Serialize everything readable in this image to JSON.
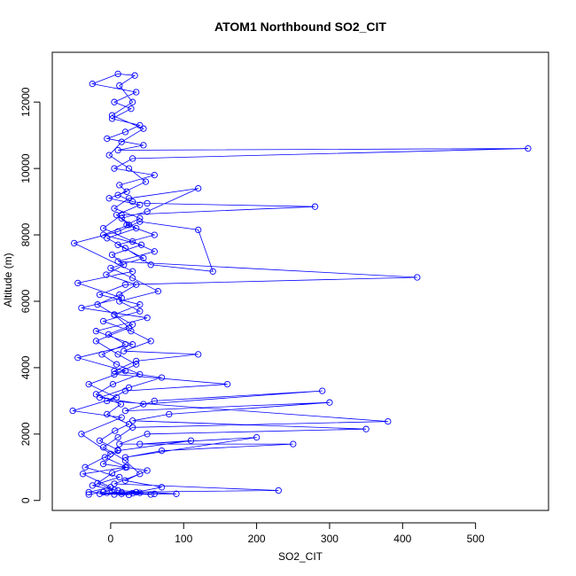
{
  "chart_data": {
    "type": "line",
    "title": "ATOM1 Northbound SO2_CIT",
    "xlabel": "SO2_CIT",
    "ylabel": "Altitude (m)",
    "xlim": [
      -80,
      600
    ],
    "ylim": [
      -300,
      13500
    ],
    "x_ticks": [
      0,
      100,
      200,
      300,
      400,
      500
    ],
    "y_ticks": [
      0,
      2000,
      4000,
      6000,
      8000,
      10000,
      12000
    ],
    "x_tick_labels": [
      "0",
      "100",
      "200",
      "300",
      "400",
      "500"
    ],
    "y_tick_labels": [
      "0",
      "2000",
      "4000",
      "6000",
      "8000",
      "10000",
      "12000"
    ],
    "grid": false,
    "legend": "none",
    "marker": "open-circle",
    "series": [
      {
        "color": "#0000ff",
        "points": [
          [
            -30,
            180
          ],
          [
            -10,
            250
          ],
          [
            5,
            320
          ],
          [
            -18,
            520
          ],
          [
            2,
            820
          ],
          [
            22,
            1000
          ],
          [
            -8,
            1300
          ],
          [
            10,
            1520
          ],
          [
            -15,
            1800
          ],
          [
            6,
            2100
          ],
          [
            25,
            2300
          ],
          [
            -5,
            2600
          ],
          [
            14,
            2900
          ],
          [
            -20,
            3200
          ],
          [
            3,
            3500
          ],
          [
            40,
            3800
          ],
          [
            8,
            4100
          ],
          [
            -12,
            4400
          ],
          [
            20,
            4700
          ],
          [
            -3,
            5000
          ],
          [
            30,
            5300
          ],
          [
            5,
            5600
          ],
          [
            -18,
            5900
          ],
          [
            12,
            6200
          ],
          [
            35,
            6500
          ],
          [
            -6,
            6800
          ],
          [
            18,
            7100
          ],
          [
            2,
            7400
          ],
          [
            42,
            7700
          ],
          [
            -10,
            8000
          ],
          [
            25,
            8300
          ],
          [
            8,
            8600
          ],
          [
            40,
            8900
          ],
          [
            -2,
            9100
          ],
          [
            22,
            9300
          ],
          [
            12,
            9500
          ],
          [
            60,
            9800
          ],
          [
            5,
            10000
          ],
          [
            30,
            10300
          ],
          [
            572,
            10600
          ],
          [
            10,
            10550
          ],
          [
            45,
            10700
          ],
          [
            -5,
            10900
          ],
          [
            20,
            11100
          ],
          [
            40,
            11300
          ],
          [
            2,
            11500
          ],
          [
            28,
            11800
          ],
          [
            5,
            12000
          ],
          [
            35,
            12300
          ],
          [
            -25,
            12550
          ],
          [
            10,
            12850
          ],
          [
            33,
            12800
          ],
          [
            12,
            12500
          ],
          [
            30,
            12000
          ],
          [
            2,
            11600
          ],
          [
            45,
            11200
          ],
          [
            15,
            10800
          ],
          [
            -2,
            10400
          ],
          [
            25,
            10000
          ],
          [
            48,
            9600
          ],
          [
            10,
            9200
          ],
          [
            30,
            9000
          ],
          [
            50,
            8950
          ],
          [
            280,
            8850
          ],
          [
            15,
            8600
          ],
          [
            -10,
            8200
          ],
          [
            30,
            7800
          ],
          [
            60,
            7500
          ],
          [
            10,
            7200
          ],
          [
            420,
            6720
          ],
          [
            20,
            6500
          ],
          [
            -15,
            6200
          ],
          [
            40,
            5900
          ],
          [
            5,
            5600
          ],
          [
            25,
            5200
          ],
          [
            -20,
            4800
          ],
          [
            10,
            4400
          ],
          [
            35,
            4100
          ],
          [
            5,
            3800
          ],
          [
            160,
            3500
          ],
          [
            20,
            3300
          ],
          [
            -5,
            3000
          ],
          [
            380,
            2380
          ],
          [
            30,
            2200
          ],
          [
            10,
            1900
          ],
          [
            -10,
            1600
          ],
          [
            20,
            1200
          ],
          [
            40,
            800
          ],
          [
            5,
            500
          ],
          [
            230,
            300
          ],
          [
            15,
            250
          ],
          [
            -5,
            230
          ],
          [
            30,
            220
          ],
          [
            60,
            200
          ],
          [
            90,
            200
          ],
          [
            10,
            300
          ],
          [
            -25,
            450
          ],
          [
            12,
            700
          ],
          [
            -35,
            1000
          ],
          [
            0,
            1400
          ],
          [
            -40,
            2000
          ],
          [
            15,
            2500
          ],
          [
            -52,
            2700
          ],
          [
            8,
            3100
          ],
          [
            -30,
            3500
          ],
          [
            20,
            3900
          ],
          [
            -45,
            4300
          ],
          [
            30,
            4700
          ],
          [
            -20,
            5100
          ],
          [
            50,
            5500
          ],
          [
            -40,
            5800
          ],
          [
            15,
            6100
          ],
          [
            -45,
            6550
          ],
          [
            30,
            6900
          ],
          [
            -50,
            7750
          ],
          [
            10,
            8100
          ],
          [
            40,
            8400
          ],
          [
            120,
            8150
          ],
          [
            140,
            6900
          ],
          [
            55,
            7100
          ],
          [
            20,
            7600
          ],
          [
            -5,
            7900
          ],
          [
            35,
            8200
          ],
          [
            15,
            8500
          ],
          [
            50,
            8700
          ],
          [
            120,
            9400
          ],
          [
            25,
            9100
          ],
          [
            5,
            8800
          ],
          [
            40,
            8500
          ],
          [
            22,
            8300
          ],
          [
            60,
            8000
          ],
          [
            10,
            7700
          ],
          [
            45,
            7300
          ],
          [
            0,
            7000
          ],
          [
            30,
            6700
          ],
          [
            65,
            6300
          ],
          [
            12,
            6000
          ],
          [
            40,
            5700
          ],
          [
            -10,
            5400
          ],
          [
            28,
            5100
          ],
          [
            55,
            4800
          ],
          [
            18,
            4500
          ],
          [
            120,
            4400
          ],
          [
            35,
            4200
          ],
          [
            5,
            3900
          ],
          [
            70,
            3700
          ],
          [
            25,
            3400
          ],
          [
            -15,
            3100
          ],
          [
            45,
            2900
          ],
          [
            290,
            3300
          ],
          [
            60,
            3000
          ],
          [
            20,
            2700
          ],
          [
            300,
            2950
          ],
          [
            80,
            2600
          ],
          [
            30,
            2400
          ],
          [
            350,
            2150
          ],
          [
            50,
            2000
          ],
          [
            12,
            1700
          ],
          [
            250,
            1700
          ],
          [
            70,
            1500
          ],
          [
            20,
            1300
          ],
          [
            200,
            1900
          ],
          [
            40,
            1700
          ],
          [
            110,
            1800
          ],
          [
            10,
            1500
          ],
          [
            -10,
            1100
          ],
          [
            50,
            900
          ],
          [
            20,
            600
          ],
          [
            70,
            400
          ],
          [
            35,
            250
          ],
          [
            5,
            180
          ],
          [
            25,
            170
          ],
          [
            -15,
            200
          ],
          [
            40,
            230
          ],
          [
            55,
            180
          ],
          [
            15,
            200
          ],
          [
            -30,
            250
          ],
          [
            0,
            400
          ],
          [
            -38,
            800
          ],
          [
            20,
            1000
          ]
        ]
      }
    ]
  }
}
